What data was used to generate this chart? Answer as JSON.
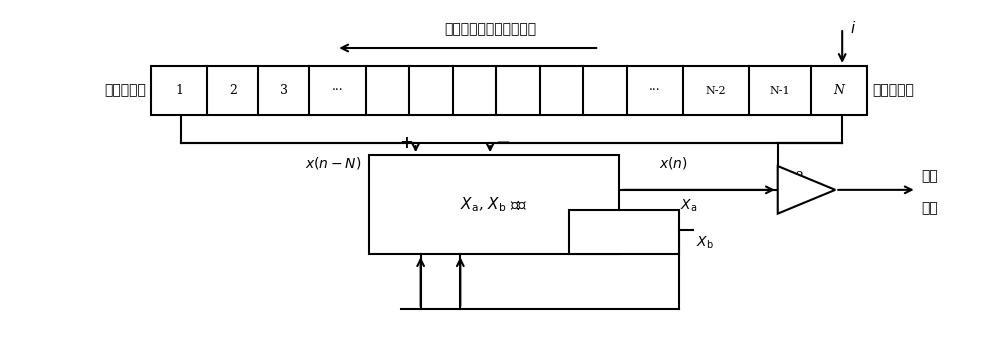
{
  "bg_color": "#ffffff",
  "line_color": "#000000",
  "title_text": "滑动循环的数据存储地址",
  "label_earliest": "最早的数据",
  "label_latest": "最新的数据",
  "label_output1": "输出",
  "label_output2": "基波",
  "cell_labels": [
    "1",
    "2",
    "3",
    "···",
    "",
    "",
    "",
    "",
    "",
    "",
    "···",
    "N-2",
    "N-1",
    "N"
  ],
  "cell_widths_norm": [
    1.1,
    1.0,
    1.0,
    1.1,
    0.85,
    0.85,
    0.85,
    0.85,
    0.85,
    0.85,
    1.1,
    1.3,
    1.2,
    1.1
  ],
  "figsize": [
    10.0,
    3.43
  ],
  "dpi": 100
}
